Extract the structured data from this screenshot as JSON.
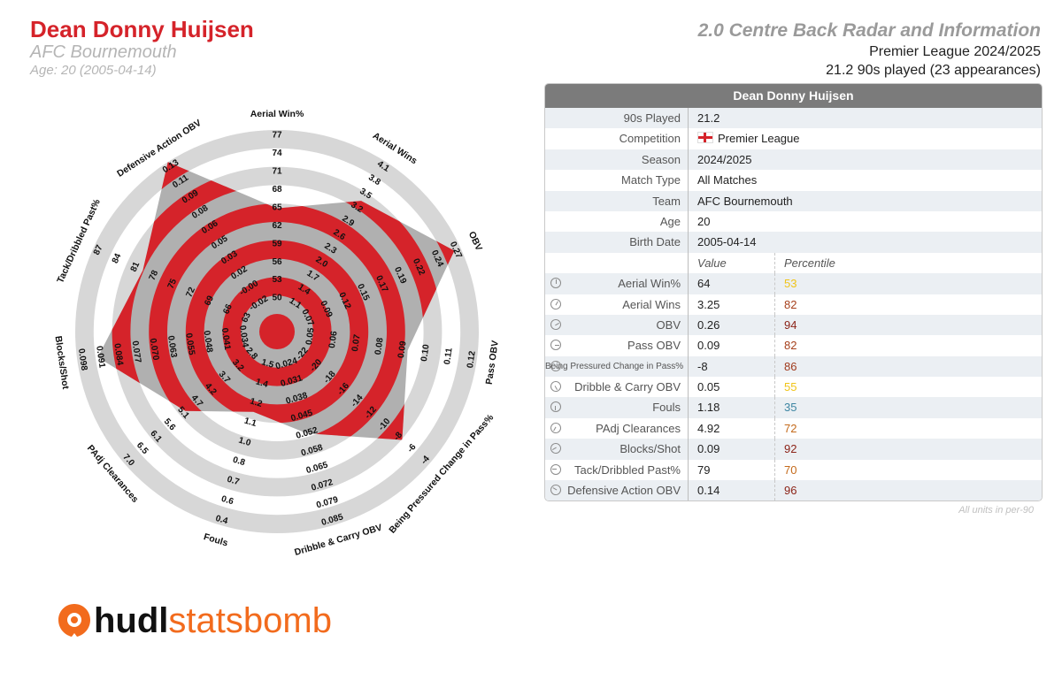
{
  "header": {
    "player_name": "Dean Donny Huijsen",
    "club": "AFC Bournemouth",
    "age_line": "Age: 20 (2005-04-14)",
    "report_title": "2.0 Centre Back Radar and Information",
    "competition_line": "Premier League 2024/2025",
    "minutes_line": "21.2 90s played (23 appearances)"
  },
  "table": {
    "title": "Dean Donny Huijsen",
    "info_rows": [
      {
        "label": "90s Played",
        "value": "21.2"
      },
      {
        "label": "Competition",
        "value": "Premier League"
      },
      {
        "label": "Season",
        "value": "2024/2025"
      },
      {
        "label": "Match Type",
        "value": "All Matches"
      },
      {
        "label": "Team",
        "value": "AFC Bournemouth"
      },
      {
        "label": "Age",
        "value": "20"
      },
      {
        "label": "Birth Date",
        "value": "2005-04-14"
      }
    ],
    "col_value": "Value",
    "col_percentile": "Percentile",
    "metric_rows": [
      {
        "label": "Aerial Win%",
        "value": "64",
        "pct": "53",
        "color": "#f0c419"
      },
      {
        "label": "Aerial Wins",
        "value": "3.25",
        "pct": "82",
        "color": "#a6401c"
      },
      {
        "label": "OBV",
        "value": "0.26",
        "pct": "94",
        "color": "#8c2418"
      },
      {
        "label": "Pass OBV",
        "value": "0.09",
        "pct": "82",
        "color": "#a6401c"
      },
      {
        "label": "Being Pressured Change in Pass%",
        "value": "-8",
        "pct": "86",
        "color": "#a03a1c"
      },
      {
        "label": "Dribble & Carry OBV",
        "value": "0.05",
        "pct": "55",
        "color": "#f0c419"
      },
      {
        "label": "Fouls",
        "value": "1.18",
        "pct": "35",
        "color": "#3e86a3"
      },
      {
        "label": "PAdj Clearances",
        "value": "4.92",
        "pct": "72",
        "color": "#c46a1b"
      },
      {
        "label": "Blocks/Shot",
        "value": "0.09",
        "pct": "92",
        "color": "#8c2418"
      },
      {
        "label": "Tack/Dribbled Past%",
        "value": "79",
        "pct": "70",
        "color": "#c46a1b"
      },
      {
        "label": "Defensive Action OBV",
        "value": "0.14",
        "pct": "96",
        "color": "#8c2418"
      }
    ],
    "footnote": "All units in per-90"
  },
  "chart_data": {
    "type": "radar",
    "axes": [
      {
        "label": "Aerial Win%",
        "value": 64,
        "ticks": [
          "50",
          "53",
          "56",
          "59",
          "62",
          "65",
          "68",
          "71",
          "74",
          "77"
        ]
      },
      {
        "label": "Aerial Wins",
        "value": 3.25,
        "ticks": [
          "1.1",
          "1.4",
          "1.7",
          "2.0",
          "2.3",
          "2.6",
          "2.9",
          "3.2",
          "3.5",
          "3.8",
          "4.1"
        ]
      },
      {
        "label": "OBV",
        "value": 0.26,
        "ticks": [
          "0.07",
          "0.09",
          "0.12",
          "0.15",
          "0.17",
          "0.19",
          "0.22",
          "0.24",
          "0.27"
        ]
      },
      {
        "label": "Pass OBV",
        "value": 0.09,
        "ticks": [
          "0.05",
          "0.06",
          "0.07",
          "0.08",
          "0.09",
          "0.10",
          "0.11",
          "0.12"
        ]
      },
      {
        "label": "Being Pressured Change in Pass%",
        "value": -8,
        "ticks": [
          "-22",
          "-20",
          "-18",
          "-16",
          "-14",
          "-12",
          "-10",
          "-8",
          "-6",
          "-4"
        ]
      },
      {
        "label": "Dribble & Carry OBV",
        "value": 0.05,
        "ticks": [
          "0.024",
          "0.031",
          "0.038",
          "0.045",
          "0.052",
          "0.058",
          "0.065",
          "0.072",
          "0.079",
          "0.085"
        ]
      },
      {
        "label": "Fouls",
        "value": 1.18,
        "ticks": [
          "1.5",
          "1.4",
          "1.2",
          "1.1",
          "1.0",
          "0.8",
          "0.7",
          "0.6",
          "0.4"
        ]
      },
      {
        "label": "PAdj Clearances",
        "value": 4.92,
        "ticks": [
          "2.8",
          "3.2",
          "3.7",
          "4.2",
          "4.7",
          "5.1",
          "5.6",
          "6.1",
          "6.5",
          "7.0"
        ]
      },
      {
        "label": "Blocks/Shot",
        "value": 0.09,
        "ticks": [
          "0.034",
          "0.041",
          "0.048",
          "0.055",
          "0.063",
          "0.070",
          "0.077",
          "0.084",
          "0.091",
          "0.098"
        ]
      },
      {
        "label": "Tack/Dribbled Past%",
        "value": 79,
        "ticks": [
          "63",
          "66",
          "69",
          "72",
          "75",
          "78",
          "81",
          "84",
          "87"
        ]
      },
      {
        "label": "Defensive Action OBV",
        "value": 0.14,
        "ticks": [
          "-0.02",
          "-0.00",
          "0.02",
          "0.03",
          "0.05",
          "0.06",
          "0.08",
          "0.09",
          "0.11",
          "0.13"
        ]
      }
    ],
    "colors": {
      "fill": "#d5232a",
      "ring": "#d7d7d7",
      "overlay": "#b0b0b0"
    }
  },
  "logo": {
    "part_a": "hudl",
    "part_b": "statsbomb"
  }
}
